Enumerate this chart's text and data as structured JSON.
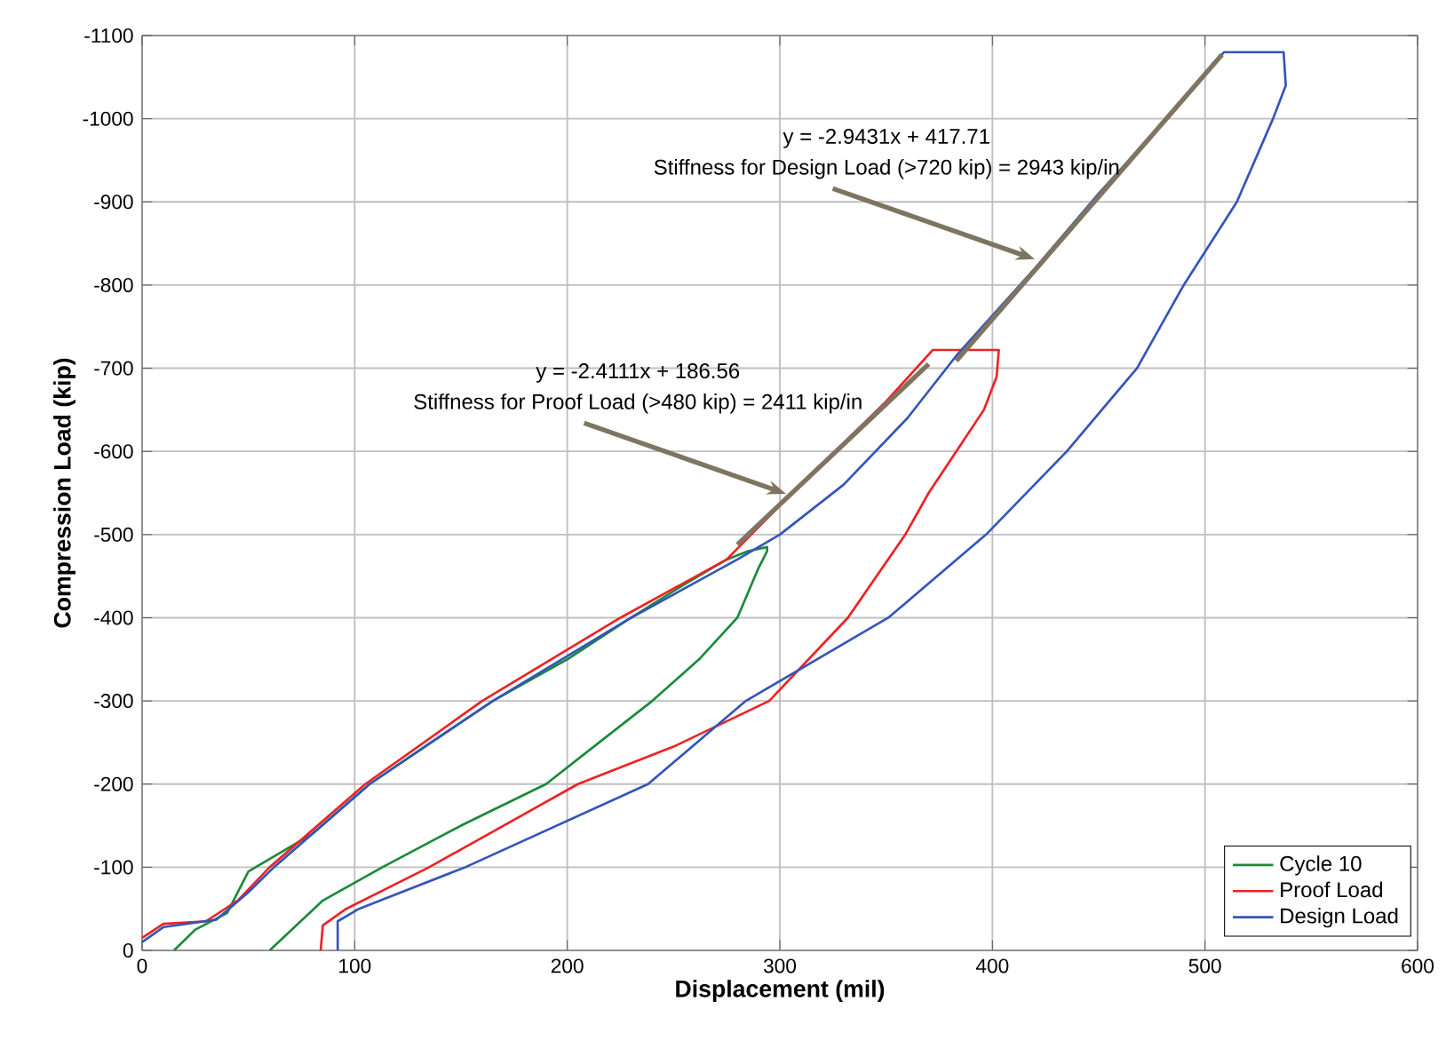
{
  "chart_data": {
    "type": "line",
    "xlabel": "Displacement (mil)",
    "ylabel": "Compression Load (kip)",
    "xlim": [
      0,
      600
    ],
    "xticks": [
      0,
      100,
      200,
      300,
      400,
      500,
      600
    ],
    "ylim": [
      0,
      -1100
    ],
    "yticks": [
      0,
      -100,
      -200,
      -300,
      -400,
      -500,
      -600,
      -700,
      -800,
      -900,
      -1000,
      -1100
    ],
    "grid": true,
    "legend": "bottom right",
    "series": [
      {
        "name": "Cycle 10",
        "color": "#1a8a3a",
        "x": [
          15,
          25,
          40,
          50,
          80,
          107,
          130,
          165,
          200,
          230,
          255,
          275,
          285,
          294,
          294,
          290,
          280,
          262,
          240,
          215,
          190,
          150,
          113,
          85,
          60
        ],
        "values": [
          0,
          -25,
          -45,
          -95,
          -140,
          -200,
          -240,
          -300,
          -350,
          -400,
          -440,
          -470,
          -480,
          -485,
          -480,
          -460,
          -400,
          -350,
          -300,
          -250,
          -200,
          -150,
          -100,
          -60,
          0
        ]
      },
      {
        "name": "Proof Load",
        "color": "#ee2222",
        "x": [
          0,
          10,
          30,
          45,
          60,
          105,
          160,
          225,
          275,
          300,
          330,
          350,
          372,
          403,
          402,
          396,
          383,
          370,
          359,
          332,
          295,
          250,
          205,
          170,
          135,
          96,
          85,
          84
        ],
        "values": [
          -15,
          -32,
          -35,
          -60,
          -100,
          -200,
          -300,
          -400,
          -470,
          -535,
          -610,
          -660,
          -722,
          -722,
          -690,
          -650,
          -600,
          -550,
          -500,
          -400,
          -300,
          -245,
          -200,
          -150,
          -100,
          -50,
          -30,
          0
        ]
      },
      {
        "name": "Design Load",
        "color": "#3355bb",
        "x": [
          0,
          10,
          35,
          50,
          62,
          107,
          165,
          230,
          280,
          300,
          330,
          360,
          383,
          420,
          450,
          480,
          509,
          537,
          538,
          532,
          515,
          490,
          468,
          435,
          397,
          351,
          284,
          238,
          152,
          102,
          92,
          92
        ],
        "values": [
          -10,
          -28,
          -37,
          -70,
          -100,
          -200,
          -300,
          -400,
          -470,
          -500,
          -560,
          -640,
          -715,
          -820,
          -910,
          -995,
          -1080,
          -1080,
          -1040,
          -1000,
          -900,
          -800,
          -700,
          -600,
          -500,
          -400,
          -300,
          -200,
          -100,
          -50,
          -35,
          0
        ]
      },
      {
        "type": "line",
        "color": "#7f7461",
        "x": [
          280,
          370
        ],
        "values": [
          -488,
          -705
        ]
      },
      {
        "type": "line",
        "color": "#7f7461",
        "x": [
          383,
          508
        ],
        "values": [
          -709,
          -1077
        ]
      }
    ],
    "annotations": [
      "y = -2.4111x + 186.56",
      {
        "text": "Stiffness for Proof Load (>480 kip) = 2411 kip/in",
        "x": 303,
        "y": -549
      },
      "y = -2.9431x + 417.71",
      {
        "text": "Stiffness for Design Load (>720 kip) = 2943 kip/in",
        "x": 420,
        "y": -831
      }
    ]
  }
}
